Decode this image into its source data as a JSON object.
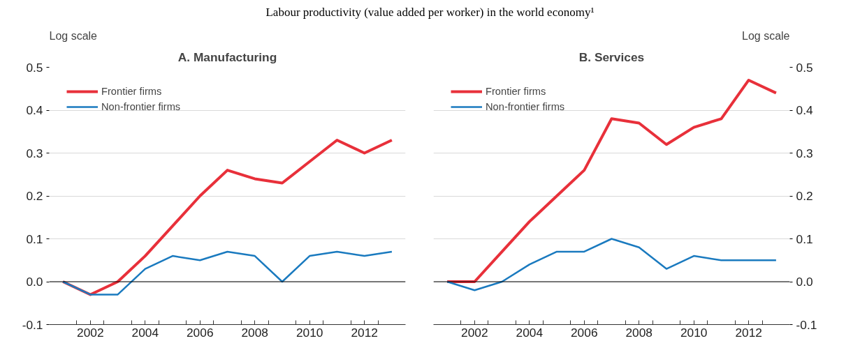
{
  "chart_data": [
    {
      "type": "line",
      "title": "A. Manufacturing",
      "subtitle": "Labour productivity (value added per worker) in the world economy¹",
      "ylabel": "Log scale",
      "x": [
        2001,
        2002,
        2003,
        2004,
        2005,
        2006,
        2007,
        2008,
        2009,
        2010,
        2011,
        2012,
        2013
      ],
      "series": [
        {
          "name": "Frontier firms",
          "color": "#e8303a",
          "values": [
            0,
            -0.03,
            0,
            0.06,
            0.13,
            0.2,
            0.26,
            0.24,
            0.23,
            0.28,
            0.33,
            0.3,
            0.33
          ]
        },
        {
          "name": "Non-frontier firms",
          "color": "#1a7abf",
          "values": [
            0,
            -0.03,
            -0.03,
            0.03,
            0.06,
            0.05,
            0.07,
            0.06,
            0,
            0.06,
            0.07,
            0.06,
            0.07
          ]
        }
      ],
      "xlim": [
        2000.5,
        2013.5
      ],
      "xticks": [
        {
          "value": 2001.5,
          "label": null
        },
        2002,
        {
          "value": 2002.5,
          "label": null
        },
        {
          "value": 2003.5,
          "label": null
        },
        2004,
        {
          "value": 2004.5,
          "label": null
        },
        {
          "value": 2005.5,
          "label": null
        },
        2006,
        {
          "value": 2006.5,
          "label": null
        },
        {
          "value": 2007.5,
          "label": null
        },
        2008,
        {
          "value": 2008.5,
          "label": null
        },
        {
          "value": 2009.5,
          "label": null
        },
        2010,
        {
          "value": 2010.5,
          "label": null
        },
        {
          "value": 2011.5,
          "label": null
        },
        2012,
        {
          "value": 2012.5,
          "label": null
        }
      ],
      "ylim": [
        -0.1,
        0.5
      ],
      "yticks": [
        -0.1,
        {
          "value": 0,
          "label": "0.0"
        },
        0.1,
        0.2,
        0.3,
        0.4,
        0.5
      ],
      "ref_lines": [
        {
          "axis": "y",
          "value": 0,
          "color": "#000000"
        }
      ],
      "grid": "y",
      "legend": "top left",
      "marker": "none",
      "line_style": "solid"
    },
    {
      "type": "line",
      "title": "B. Services",
      "ylabel": "Log scale",
      "x": [
        2001,
        2002,
        2003,
        2004,
        2005,
        2006,
        2007,
        2008,
        2009,
        2010,
        2011,
        2012,
        2013
      ],
      "series": [
        {
          "name": "Frontier firms",
          "color": "#e8303a",
          "values": [
            0,
            0,
            0.07,
            0.14,
            0.2,
            0.26,
            0.38,
            0.37,
            0.32,
            0.36,
            0.38,
            0.47,
            0.44
          ]
        },
        {
          "name": "Non-frontier firms",
          "color": "#1a7abf",
          "values": [
            0,
            -0.02,
            0,
            0.04,
            0.07,
            0.07,
            0.1,
            0.08,
            0.03,
            0.06,
            0.05,
            0.05,
            0.05
          ]
        }
      ],
      "xlim": [
        2000.5,
        2013.5
      ],
      "xticks": [
        {
          "value": 2001.5,
          "label": null
        },
        2002,
        {
          "value": 2002.5,
          "label": null
        },
        {
          "value": 2003.5,
          "label": null
        },
        2004,
        {
          "value": 2004.5,
          "label": null
        },
        {
          "value": 2005.5,
          "label": null
        },
        2006,
        {
          "value": 2006.5,
          "label": null
        },
        {
          "value": 2007.5,
          "label": null
        },
        2008,
        {
          "value": 2008.5,
          "label": null
        },
        {
          "value": 2009.5,
          "label": null
        },
        2010,
        {
          "value": 2010.5,
          "label": null
        },
        {
          "value": 2011.5,
          "label": null
        },
        2012,
        {
          "value": 2012.5,
          "label": null
        }
      ],
      "ylim": [
        -0.1,
        0.5
      ],
      "yticks": [
        -0.1,
        {
          "value": 0,
          "label": "0.0"
        },
        0.1,
        0.2,
        0.3,
        0.4,
        0.5
      ],
      "ref_lines": [
        {
          "axis": "y",
          "value": 0,
          "color": "#000000"
        }
      ],
      "grid": "y",
      "legend": "top left",
      "marker": "none",
      "line_style": "solid"
    }
  ]
}
